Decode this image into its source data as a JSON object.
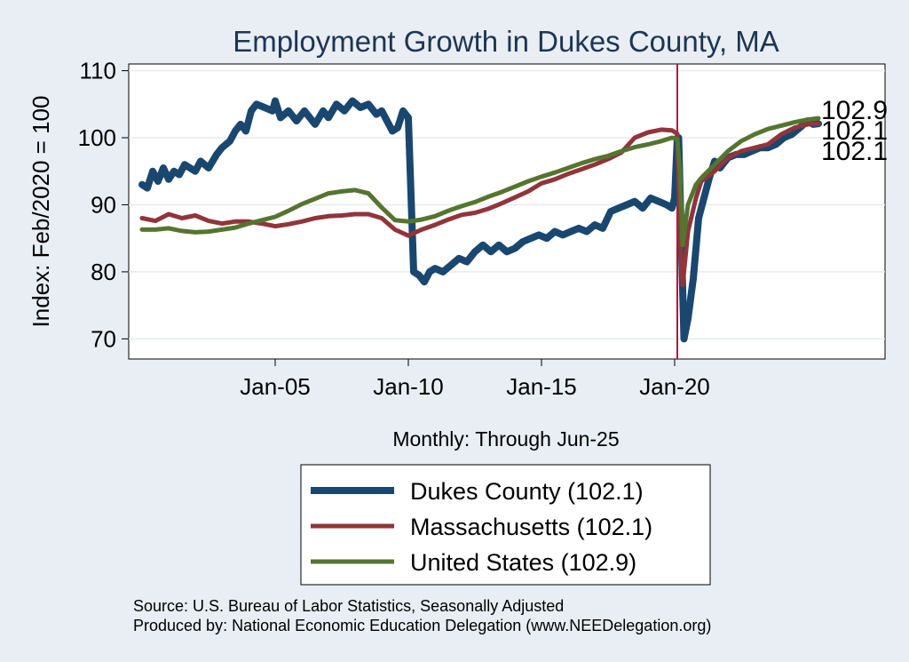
{
  "chart_data": {
    "type": "line",
    "title": "Employment Growth in Dukes  County, MA",
    "xlabel": "Monthly: Through Jun-25",
    "ylabel": "Index: Feb/2020 = 100",
    "ylim": [
      67,
      111
    ],
    "xlim": [
      1999.5,
      2027.9
    ],
    "yticks": [
      70,
      80,
      90,
      100,
      110
    ],
    "xticks": [
      {
        "value": 2005.0,
        "label": "Jan-05"
      },
      {
        "value": 2010.0,
        "label": "Jan-10"
      },
      {
        "value": 2015.0,
        "label": "Jan-15"
      },
      {
        "value": 2020.0,
        "label": "Jan-20"
      }
    ],
    "reference_line": 2020.1,
    "series": [
      {
        "name": "Dukes  County",
        "legend": "Dukes  County (102.1)",
        "end_label": "102.1",
        "color": "#1a476f",
        "x": [
          2000.0,
          2000.2,
          2000.4,
          2000.6,
          2000.8,
          2001.0,
          2001.2,
          2001.4,
          2001.6,
          2001.8,
          2002.0,
          2002.2,
          2002.5,
          2002.8,
          2003.0,
          2003.3,
          2003.5,
          2003.7,
          2003.9,
          2004.1,
          2004.3,
          2004.6,
          2004.9,
          2005.0,
          2005.2,
          2005.5,
          2005.8,
          2006.1,
          2006.3,
          2006.5,
          2006.8,
          2007.0,
          2007.3,
          2007.6,
          2007.9,
          2008.2,
          2008.5,
          2008.8,
          2009.0,
          2009.2,
          2009.4,
          2009.6,
          2009.8,
          2009.9,
          2010.0,
          2010.2,
          2010.4,
          2010.6,
          2010.8,
          2011.0,
          2011.3,
          2011.6,
          2011.9,
          2012.2,
          2012.5,
          2012.8,
          2013.1,
          2013.4,
          2013.7,
          2014.0,
          2014.3,
          2014.6,
          2014.9,
          2015.2,
          2015.5,
          2015.8,
          2016.1,
          2016.4,
          2016.7,
          2017.0,
          2017.3,
          2017.6,
          2017.9,
          2018.2,
          2018.5,
          2018.8,
          2019.1,
          2019.4,
          2019.7,
          2019.9,
          2020.0,
          2020.1,
          2020.15,
          2020.25,
          2020.35,
          2020.5,
          2020.7,
          2020.9,
          2021.1,
          2021.3,
          2021.5,
          2021.7,
          2022.0,
          2022.3,
          2022.6,
          2022.9,
          2023.2,
          2023.5,
          2023.8,
          2024.1,
          2024.4,
          2024.7,
          2025.0,
          2025.2,
          2025.4
        ],
        "values": [
          93,
          92.5,
          95,
          93.5,
          95.5,
          93.8,
          95,
          94.5,
          96,
          95.5,
          95,
          96.5,
          95.5,
          97.5,
          98.5,
          99.5,
          101,
          102,
          101,
          104,
          105,
          104.5,
          104,
          105.5,
          103,
          104,
          102.5,
          104,
          103,
          102,
          104,
          103,
          105,
          104,
          105.5,
          104.5,
          105,
          103.5,
          104,
          102.5,
          101,
          101.5,
          104,
          103.5,
          103,
          80,
          79.5,
          78.5,
          80,
          80.5,
          80,
          81,
          82,
          81.5,
          83,
          84,
          83,
          84,
          83,
          83.5,
          84.5,
          85,
          85.5,
          85,
          86,
          85.5,
          86,
          86.5,
          86,
          87,
          86.5,
          89,
          89.5,
          90,
          90.5,
          89.5,
          91,
          90.5,
          90,
          89.5,
          91,
          100,
          100,
          85,
          70,
          73,
          79,
          88,
          91,
          94,
          96.5,
          95.5,
          97,
          97.5,
          97.5,
          98,
          98.5,
          98.5,
          99,
          100,
          100.5,
          101.5,
          102.5,
          102,
          102.1
        ]
      },
      {
        "name": "Massachusetts",
        "legend": "Massachusetts (102.1)",
        "end_label": "102.1",
        "color": "#90353b",
        "x": [
          2000.0,
          2000.5,
          2001.0,
          2001.5,
          2002.0,
          2002.5,
          2003.0,
          2003.5,
          2004.0,
          2004.5,
          2005.0,
          2005.5,
          2006.0,
          2006.5,
          2007.0,
          2007.5,
          2008.0,
          2008.5,
          2009.0,
          2009.5,
          2010.0,
          2010.5,
          2011.0,
          2011.5,
          2012.0,
          2012.5,
          2013.0,
          2013.5,
          2014.0,
          2014.5,
          2015.0,
          2015.5,
          2016.0,
          2016.5,
          2017.0,
          2017.5,
          2018.0,
          2018.5,
          2019.0,
          2019.5,
          2019.9,
          2020.1,
          2020.2,
          2020.3,
          2020.5,
          2020.8,
          2021.0,
          2021.5,
          2022.0,
          2022.5,
          2023.0,
          2023.5,
          2024.0,
          2024.5,
          2025.0,
          2025.4
        ],
        "values": [
          88,
          87.6,
          88.6,
          88,
          88.4,
          87.6,
          87.2,
          87.5,
          87.5,
          87.2,
          86.8,
          87.1,
          87.5,
          88,
          88.3,
          88.4,
          88.6,
          88.6,
          88,
          86.3,
          85.4,
          86.3,
          87,
          87.8,
          88.5,
          88.8,
          89.4,
          90.2,
          91.1,
          92,
          93.2,
          93.8,
          94.6,
          95.3,
          96,
          96.8,
          97.8,
          100,
          100.8,
          101.2,
          101.1,
          100.6,
          85,
          78,
          86,
          91,
          93.5,
          95,
          97,
          98,
          98.5,
          99,
          100.5,
          101.5,
          102,
          102.1
        ]
      },
      {
        "name": "United States",
        "legend": "United States (102.9)",
        "end_label": "102.9",
        "color": "#55752f",
        "x": [
          2000.0,
          2000.5,
          2001.0,
          2001.5,
          2002.0,
          2002.5,
          2003.0,
          2003.5,
          2004.0,
          2004.5,
          2005.0,
          2005.5,
          2006.0,
          2006.5,
          2007.0,
          2007.5,
          2008.0,
          2008.5,
          2009.0,
          2009.5,
          2010.0,
          2010.5,
          2011.0,
          2011.5,
          2012.0,
          2012.5,
          2013.0,
          2013.5,
          2014.0,
          2014.5,
          2015.0,
          2015.5,
          2016.0,
          2016.5,
          2017.0,
          2017.5,
          2018.0,
          2018.5,
          2019.0,
          2019.5,
          2019.9,
          2020.1,
          2020.2,
          2020.3,
          2020.5,
          2020.8,
          2021.0,
          2021.5,
          2022.0,
          2022.5,
          2023.0,
          2023.5,
          2024.0,
          2024.5,
          2025.0,
          2025.4
        ],
        "values": [
          86.3,
          86.3,
          86.5,
          86.1,
          85.9,
          86,
          86.3,
          86.6,
          87.2,
          87.7,
          88.2,
          89.1,
          90.1,
          90.9,
          91.7,
          92,
          92.2,
          91.7,
          89.6,
          87.7,
          87.5,
          87.8,
          88.3,
          89.1,
          89.8,
          90.4,
          91.2,
          91.9,
          92.7,
          93.5,
          94.2,
          94.8,
          95.5,
          96.2,
          96.8,
          97.3,
          98,
          98.6,
          99,
          99.5,
          100,
          99.8,
          95,
          84,
          90,
          93,
          94,
          96,
          98,
          99.5,
          100.5,
          101.3,
          101.8,
          102.3,
          102.7,
          102.9
        ]
      }
    ]
  },
  "source_line": "Source: U.S. Bureau of Labor Statistics, Seasonally Adjusted",
  "produced_line": "Produced by: National Economic Education Delegation (www.NEEDelegation.org)"
}
